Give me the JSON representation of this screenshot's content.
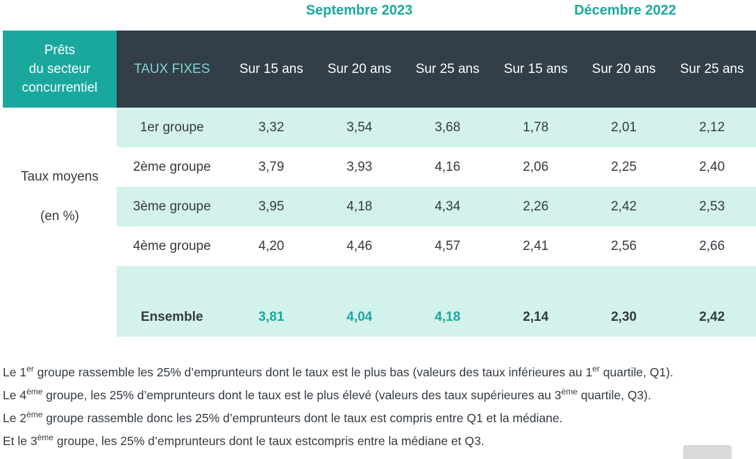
{
  "periods": {
    "september": "Septembre 2023",
    "december": "Décembre 2022"
  },
  "corner": {
    "line1": "Prêts",
    "line2": "du secteur",
    "line3": "concurrentiel"
  },
  "header": {
    "label": "TAUX FIXES",
    "columns": [
      "Sur 15 ans",
      "Sur 20 ans",
      "Sur 25 ans",
      "Sur 15 ans",
      "Sur 20 ans",
      "Sur 25 ans"
    ]
  },
  "side_label": {
    "line1": "Taux moyens",
    "line2": "(en %)"
  },
  "rows": [
    {
      "label": "1er groupe",
      "values": [
        "3,32",
        "3,54",
        "3,68",
        "1,78",
        "2,01",
        "2,12"
      ]
    },
    {
      "label": "2ème groupe",
      "values": [
        "3,79",
        "3,93",
        "4,16",
        "2,06",
        "2,25",
        "2,40"
      ]
    },
    {
      "label": "3ème groupe",
      "values": [
        "3,95",
        "4,18",
        "4,34",
        "2,26",
        "2,42",
        "2,53"
      ]
    },
    {
      "label": "4ème groupe",
      "values": [
        "4,20",
        "4,46",
        "4,57",
        "2,41",
        "2,56",
        "2,66"
      ]
    },
    {
      "label": "Ensemble",
      "values": [
        "3,81",
        "4,04",
        "4,18",
        "2,14",
        "2,30",
        "2,42"
      ]
    }
  ],
  "notes": [
    {
      "a": "Le 1",
      "sup1": "er",
      "b": " groupe rassemble les 25% d’emprunteurs dont le taux est le plus bas (valeurs des taux inférieures au 1",
      "sup2": "er",
      "c": " quartile, Q1)."
    },
    {
      "a": "Le 4",
      "sup1": "ème",
      "b": " groupe, les 25% d’emprunteurs dont le taux est le plus élevé (valeurs des taux supérieures au 3",
      "sup2": "ème",
      "c": " quartile, Q3)."
    },
    {
      "a": "Le 2",
      "sup1": "ème",
      "b": " groupe rassemble donc les 25% d’emprunteurs dont le taux est compris entre Q1 et la médiane."
    },
    {
      "a": "Et le 3",
      "sup1": "ème",
      "b": " groupe, les 25% d’emprunteurs dont le taux estcompris entre la médiane et Q3."
    }
  ],
  "colors": {
    "teal": "#1aa89e",
    "dark_header": "#323e48",
    "light_teal": "#7fd6cf",
    "row_shade": "#d4f2ec"
  }
}
